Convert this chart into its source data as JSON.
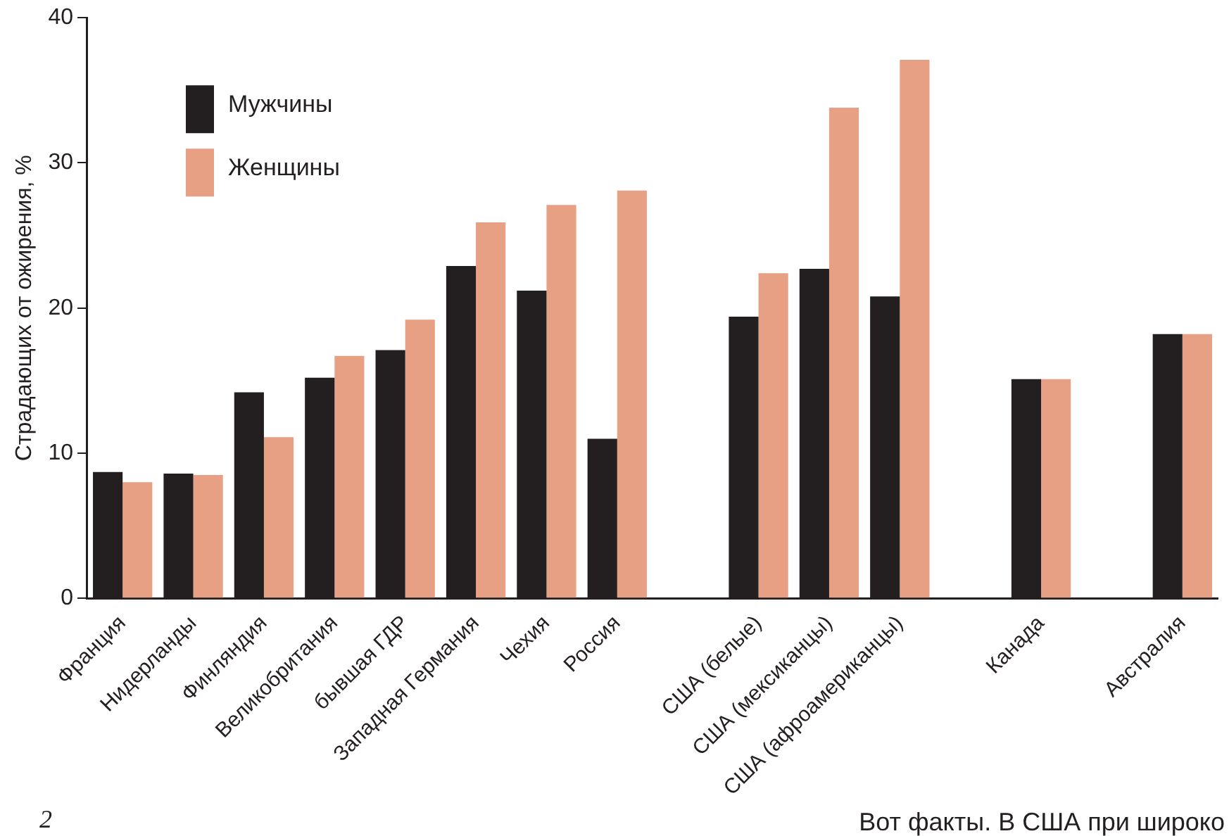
{
  "chart_data": {
    "type": "bar",
    "ylabel": "Страдающих от ожирения, %",
    "categories": [
      "Франция",
      "Нидерланды",
      "Финляндия",
      "Великобритания",
      "бывшая ГДР",
      "Западная Германия",
      "Чехия",
      "Россия",
      null,
      "США (белые)",
      "США (мексиканцы)",
      "США (афроамериканцы)",
      null,
      "Канада",
      null,
      "Австралия"
    ],
    "series": [
      {
        "name": "Мужчины",
        "color": "#231f20",
        "values": [
          8.7,
          8.6,
          14.2,
          15.2,
          17.1,
          22.9,
          21.2,
          11.0,
          null,
          19.4,
          22.7,
          20.8,
          null,
          15.1,
          null,
          18.2
        ]
      },
      {
        "name": "Женщины",
        "color": "#e8a084",
        "values": [
          8.0,
          8.5,
          11.1,
          16.7,
          19.2,
          25.9,
          27.1,
          28.1,
          null,
          22.4,
          33.8,
          37.1,
          null,
          15.1,
          null,
          18.2
        ]
      }
    ],
    "ylim": [
      0,
      40
    ],
    "yticks": [
      0,
      10,
      20,
      30,
      40
    ],
    "grid": false,
    "legend": "top left",
    "annotations": [
      "2",
      "Вот факты. В США при широко"
    ]
  }
}
